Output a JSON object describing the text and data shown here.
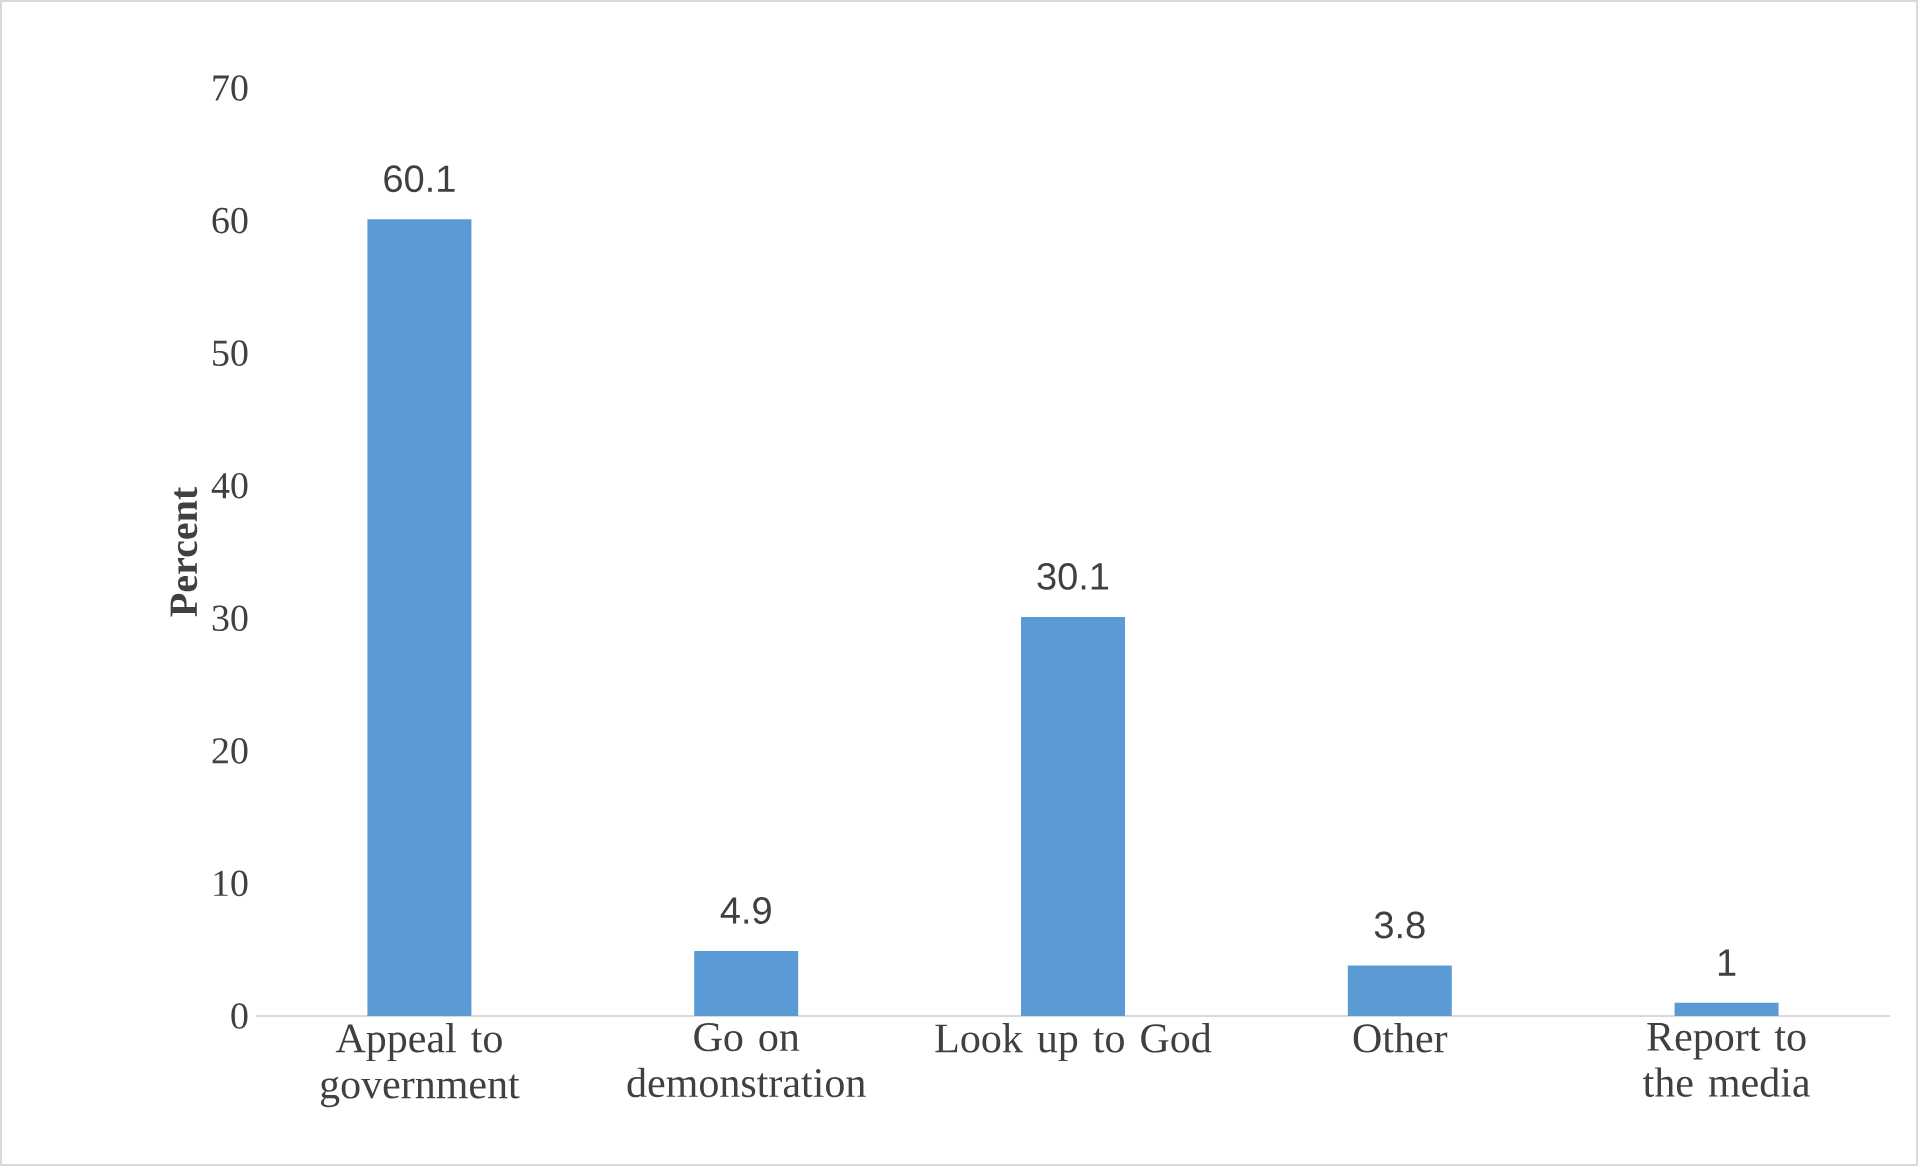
{
  "chart_data": {
    "type": "bar",
    "ylabel": "Percent",
    "categories": [
      "Appeal to government",
      "Go on demonstration",
      "Look up to God",
      "Other",
      "Report to the media"
    ],
    "values": [
      60.1,
      4.9,
      30.1,
      3.8,
      1
    ],
    "color": "#5b9bd5",
    "ylim": [
      0,
      70
    ],
    "yticks": [
      0,
      10,
      20,
      30,
      40,
      50,
      60,
      70
    ],
    "grid": false,
    "data_labels": true
  }
}
